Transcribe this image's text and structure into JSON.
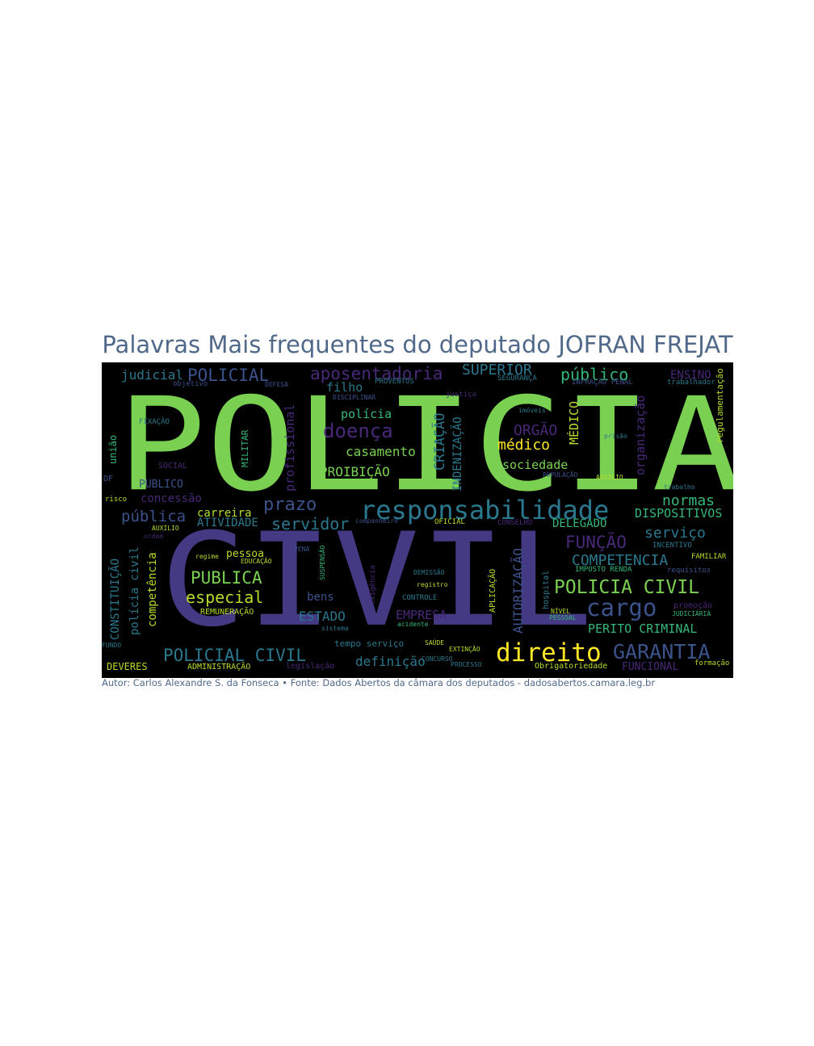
{
  "title": "Palavras Mais frequentes do deputado JOFRAN FREJAT",
  "caption": "Autor: Carlos Alexandre S. da Fonseca • Fonte: Dados Abertos da câmara dos deputados - dadosabertos.camara.leg.br",
  "colors": {
    "title": "#50698a",
    "background": "#000000",
    "green": "#7ad151",
    "indigo": "#443983",
    "teal": "#2a788e",
    "yellow": "#fde725",
    "purple": "#482878",
    "mint": "#35b779",
    "lime": "#b5de2b"
  },
  "words": [
    "POLICIA",
    "CIVIL",
    "responsabilidade",
    "direito",
    "cargo",
    "GARANTIA",
    "POLICIA CIVIL",
    "POLICIAL CIVIL",
    "aposentadoria",
    "POLICIAL",
    "SUPERIOR",
    "público",
    "judicial",
    "doença",
    "prazo",
    "servidor",
    "pública",
    "carreira",
    "ATIVIDADE",
    "normas",
    "DISPOSITIVOS",
    "FUNÇÃO",
    "serviço",
    "COMPETENCIA",
    "PUBLICA",
    "especial",
    "ESTADO",
    "bens",
    "EMPRESA",
    "PERITO CRIMINAL",
    "DELEGADO",
    "médico",
    "ORGÃO",
    "MÉDICO",
    "sociedade",
    "casamento",
    "PROIBIÇÃO",
    "polícia",
    "filho",
    "CRIAÇÃO",
    "INDENIZAÇÃO",
    "AUTORIZAÇÃO",
    "organização",
    "regulamentação",
    "ENSINO",
    "profissional",
    "concessão",
    "PUBLICO",
    "CONSTITUIÇÃO",
    "polícia civil",
    "competência",
    "definição",
    "DEVERES",
    "ADMINISTRAÇÃO",
    "FUNCIONAL",
    "pessoa",
    "REMUNERAÇÃO",
    "tempo serviço",
    "Obrigatoriedade",
    "união",
    "SOCIAL",
    "DF",
    "FIXAÇÃO",
    "MILITAR",
    "APLICAÇÃO",
    "hospital",
    "IMPOSTO RENDA",
    "JUDICIÁRIA",
    "promoção",
    "trabalhador",
    "DEMISSÃO",
    "registro",
    "CONTROLE",
    "exigência",
    "regime",
    "EDUCAÇÃO",
    "PENA",
    "SUSPENSÃO",
    "PROVENTOS",
    "SEGURANÇA",
    "INFRAÇÃO PENAL",
    "DISCIPLINAR",
    "justiça",
    "objetivo",
    "AUXÍLIO",
    "risco",
    "legislação",
    "formação",
    "FAMILIAR",
    "OFICIAL",
    "CONSELHO",
    "PROCESSO",
    "NÍVEL",
    "requisitos",
    "INCENTIVO",
    "AUXILIO",
    "trabalho",
    "POPULAÇÃO",
    "prisão",
    "imóveis",
    "EXTINÇÃO",
    "acidente",
    "SAÚDE",
    "sistema",
    "companheiro",
    "FUNDO",
    "DEFESA",
    "PESSOAL",
    "ordem",
    "CONCURSO"
  ]
}
